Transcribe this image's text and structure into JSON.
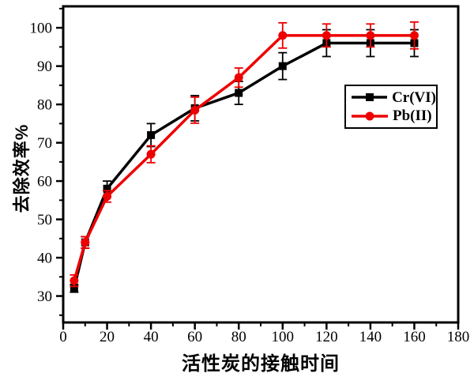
{
  "accent_colors": {
    "cr_series": "#000000",
    "pb_series": "#ee0000",
    "axis": "#000000",
    "background": "#ffffff"
  },
  "chart_data": {
    "type": "line",
    "title": "",
    "xlabel": "活性炭的接触时间",
    "ylabel": "去除效率%",
    "x": [
      5,
      10,
      20,
      40,
      60,
      80,
      100,
      120,
      140,
      160
    ],
    "series": [
      {
        "name": "Cr(VI)",
        "color": "#000000",
        "marker": "square",
        "values": [
          32,
          44,
          58,
          72,
          79,
          83,
          90,
          96,
          96,
          96
        ],
        "errors": [
          1,
          1.5,
          2,
          3,
          3.3,
          3,
          3.5,
          3.5,
          3.5,
          3.5
        ]
      },
      {
        "name": "Pb(II)",
        "color": "#ee0000",
        "marker": "circle",
        "values": [
          34,
          44,
          56,
          67,
          78.5,
          87,
          98,
          98,
          98,
          98
        ],
        "errors": [
          1.5,
          1.5,
          1.5,
          2.2,
          3.4,
          2.5,
          3.3,
          3,
          3,
          3.5
        ]
      }
    ],
    "xlim": [
      0,
      180
    ],
    "ylim": [
      23.1,
      105.6
    ],
    "xticks": [
      0,
      20,
      40,
      60,
      80,
      100,
      120,
      140,
      160,
      180
    ],
    "yticks": [
      30,
      40,
      50,
      60,
      70,
      80,
      90,
      100
    ],
    "x_minor_step": 10,
    "y_minor_step": 5,
    "grid": false,
    "legend_position": "inside-right",
    "error_bars": true
  }
}
